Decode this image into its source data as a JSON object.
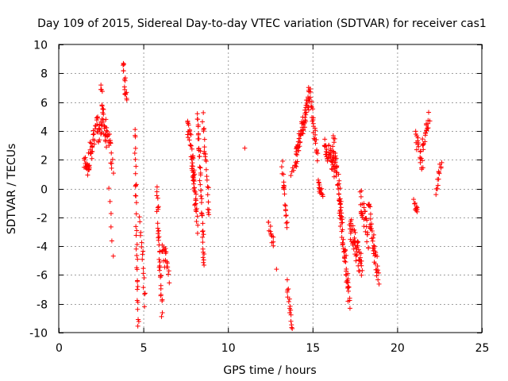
{
  "chart_data": {
    "type": "scatter",
    "title": "Day 109 of 2015, Sidereal Day-to-day VTEC variation (SDTVAR) for receiver cas1",
    "xlabel": "GPS time / hours",
    "ylabel": "SDTVAR / TECUs",
    "xlim": [
      0,
      25
    ],
    "ylim": [
      -10,
      10
    ],
    "x_ticks": [
      "0",
      "5",
      "10",
      "15",
      "20",
      "25"
    ],
    "y_ticks": [
      "-10",
      "-8",
      "-6",
      "-4",
      "-2",
      "0",
      "2",
      "4",
      "6",
      "8",
      "10"
    ],
    "x_tick_values": [
      0,
      5,
      10,
      15,
      20,
      25
    ],
    "y_tick_values": [
      -10,
      -8,
      -6,
      -4,
      -2,
      0,
      2,
      4,
      6,
      8,
      10
    ],
    "grid": true,
    "marker": "+",
    "series": [
      {
        "name": "SDTVAR",
        "color": "#ff0000",
        "segments": [
          {
            "t0": 1.5,
            "t1": 1.8,
            "v0": 1.8,
            "v1": 1.2,
            "n": 18,
            "jitter": 0.45
          },
          {
            "t0": 1.8,
            "t1": 2.3,
            "v0": 2.2,
            "v1": 4.5,
            "n": 28,
            "jitter": 0.9
          },
          {
            "t0": 2.3,
            "t1": 2.6,
            "v0": 3.5,
            "v1": 4.5,
            "n": 16,
            "jitter": 0.6
          },
          {
            "t0": 2.5,
            "t1": 2.8,
            "v0": 6.8,
            "v1": 3.0,
            "n": 22,
            "jitter": 0.5
          },
          {
            "t0": 2.8,
            "t1": 3.2,
            "v0": 4.5,
            "v1": 1.5,
            "n": 20,
            "jitter": 0.7
          },
          {
            "t0": 3.0,
            "t1": 3.2,
            "v0": 0.2,
            "v1": -4.8,
            "n": 6,
            "jitter": 0.3
          },
          {
            "t0": 3.8,
            "t1": 4.0,
            "v0": 8.8,
            "v1": 6.0,
            "n": 16,
            "jitter": 0.4
          },
          {
            "t0": 4.5,
            "t1": 4.7,
            "v0": 4.0,
            "v1": -9.7,
            "n": 34,
            "jitter": 0.5
          },
          {
            "t0": 4.8,
            "t1": 5.1,
            "v0": -2.0,
            "v1": -8.0,
            "n": 16,
            "jitter": 0.5
          },
          {
            "t0": 5.8,
            "t1": 6.1,
            "v0": 0.0,
            "v1": -8.7,
            "n": 36,
            "jitter": 0.7
          },
          {
            "t0": 6.1,
            "t1": 6.5,
            "v0": -4.0,
            "v1": -6.0,
            "n": 20,
            "jitter": 0.8
          },
          {
            "t0": 7.6,
            "t1": 8.0,
            "v0": 4.8,
            "v1": 1.0,
            "n": 28,
            "jitter": 0.8
          },
          {
            "t0": 7.9,
            "t1": 8.2,
            "v0": 2.0,
            "v1": -2.5,
            "n": 30,
            "jitter": 0.8
          },
          {
            "t0": 8.2,
            "t1": 8.6,
            "v0": 5.5,
            "v1": -5.5,
            "n": 44,
            "jitter": 0.7
          },
          {
            "t0": 8.5,
            "t1": 8.9,
            "v0": 5.0,
            "v1": -2.0,
            "n": 24,
            "jitter": 0.6
          },
          {
            "t0": 11.0,
            "t1": 11.1,
            "v0": 2.8,
            "v1": 2.8,
            "n": 1,
            "jitter": 0.0
          },
          {
            "t0": 12.4,
            "t1": 12.7,
            "v0": -2.5,
            "v1": -3.9,
            "n": 12,
            "jitter": 0.3
          },
          {
            "t0": 12.9,
            "t1": 13.0,
            "v0": -5.6,
            "v1": -5.6,
            "n": 1,
            "jitter": 0.0
          },
          {
            "t0": 13.2,
            "t1": 13.5,
            "v0": 1.6,
            "v1": -2.5,
            "n": 20,
            "jitter": 0.5
          },
          {
            "t0": 13.5,
            "t1": 13.8,
            "v0": -6.5,
            "v1": -9.7,
            "n": 16,
            "jitter": 0.4
          },
          {
            "t0": 13.7,
            "t1": 14.1,
            "v0": 1.2,
            "v1": 1.6,
            "n": 8,
            "jitter": 0.3
          },
          {
            "t0": 14.0,
            "t1": 14.8,
            "v0": 2.2,
            "v1": 6.2,
            "n": 60,
            "jitter": 0.7
          },
          {
            "t0": 14.8,
            "t1": 15.3,
            "v0": 6.8,
            "v1": 2.0,
            "n": 30,
            "jitter": 0.6
          },
          {
            "t0": 15.3,
            "t1": 15.6,
            "v0": 0.4,
            "v1": -0.6,
            "n": 14,
            "jitter": 0.3
          },
          {
            "t0": 15.7,
            "t1": 16.3,
            "v0": 3.2,
            "v1": 1.3,
            "n": 40,
            "jitter": 0.7
          },
          {
            "t0": 16.2,
            "t1": 16.7,
            "v0": 3.5,
            "v1": -1.5,
            "n": 40,
            "jitter": 0.8
          },
          {
            "t0": 16.6,
            "t1": 17.2,
            "v0": -1.5,
            "v1": -7.8,
            "n": 50,
            "jitter": 0.9
          },
          {
            "t0": 17.2,
            "t1": 17.9,
            "v0": -2.5,
            "v1": -5.5,
            "n": 50,
            "jitter": 0.9
          },
          {
            "t0": 17.8,
            "t1": 18.3,
            "v0": -0.6,
            "v1": -3.5,
            "n": 30,
            "jitter": 0.8
          },
          {
            "t0": 18.3,
            "t1": 18.9,
            "v0": -1.5,
            "v1": -6.2,
            "n": 40,
            "jitter": 0.9
          },
          {
            "t0": 21.0,
            "t1": 21.2,
            "v0": -1.0,
            "v1": -1.6,
            "n": 10,
            "jitter": 0.3
          },
          {
            "t0": 21.1,
            "t1": 21.5,
            "v0": 3.5,
            "v1": 1.5,
            "n": 20,
            "jitter": 0.6
          },
          {
            "t0": 21.5,
            "t1": 21.9,
            "v0": 3.0,
            "v1": 4.8,
            "n": 20,
            "jitter": 0.6
          },
          {
            "t0": 22.3,
            "t1": 22.6,
            "v0": -0.4,
            "v1": 1.8,
            "n": 14,
            "jitter": 0.4
          }
        ]
      }
    ]
  }
}
